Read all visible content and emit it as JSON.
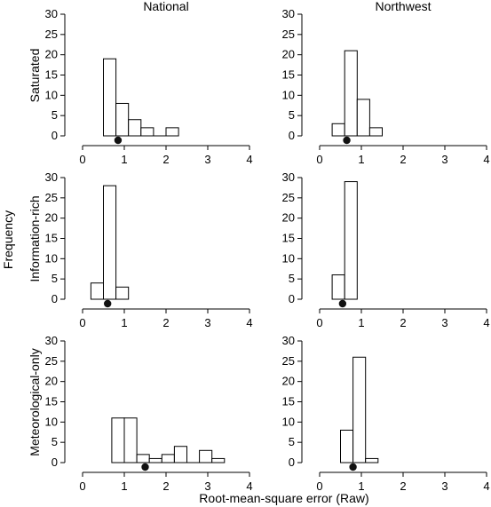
{
  "chart_data": {
    "type": "bar",
    "layout": "3x2 grid of histograms",
    "column_titles": [
      "National",
      "Northwest"
    ],
    "row_labels": [
      "Saturated",
      "Information-rich",
      "Meteorological-only"
    ],
    "xlabel": "Root-mean-square error (Raw)",
    "ylabel": "Frequency",
    "xlim": [
      0,
      4
    ],
    "ylim": [
      0,
      30
    ],
    "x_ticks": [
      "0",
      "1",
      "2",
      "3",
      "4"
    ],
    "y_ticks": [
      "0",
      "5",
      "10",
      "15",
      "20",
      "25",
      "30"
    ],
    "bin_width": 0.3,
    "grid": false,
    "marker": "filled circle below each histogram",
    "panels": [
      {
        "row": "Saturated",
        "column": "National",
        "bins_start": [
          0.5,
          0.8,
          1.1,
          1.4,
          1.7,
          2.0
        ],
        "counts": [
          19,
          8,
          4,
          2,
          0,
          2
        ],
        "marker_x": 0.85
      },
      {
        "row": "Saturated",
        "column": "Northwest",
        "bins_start": [
          0.3,
          0.6,
          0.9,
          1.2
        ],
        "counts": [
          3,
          21,
          9,
          2
        ],
        "marker_x": 0.65
      },
      {
        "row": "Information-rich",
        "column": "National",
        "bins_start": [
          0.2,
          0.5,
          0.8
        ],
        "counts": [
          4,
          28,
          3
        ],
        "marker_x": 0.6
      },
      {
        "row": "Information-rich",
        "column": "Northwest",
        "bins_start": [
          0.3,
          0.6
        ],
        "counts": [
          6,
          29
        ],
        "marker_x": 0.55
      },
      {
        "row": "Meteorological-only",
        "column": "National",
        "bins_start": [
          0.7,
          1.0,
          1.3,
          1.6,
          1.9,
          2.2,
          2.5,
          2.8,
          3.1
        ],
        "counts": [
          11,
          11,
          2,
          1,
          2,
          4,
          0,
          3,
          1
        ],
        "marker_x": 1.5
      },
      {
        "row": "Meteorological-only",
        "column": "Northwest",
        "bins_start": [
          0.5,
          0.8,
          1.1
        ],
        "counts": [
          8,
          26,
          1
        ],
        "marker_x": 0.8
      }
    ]
  }
}
